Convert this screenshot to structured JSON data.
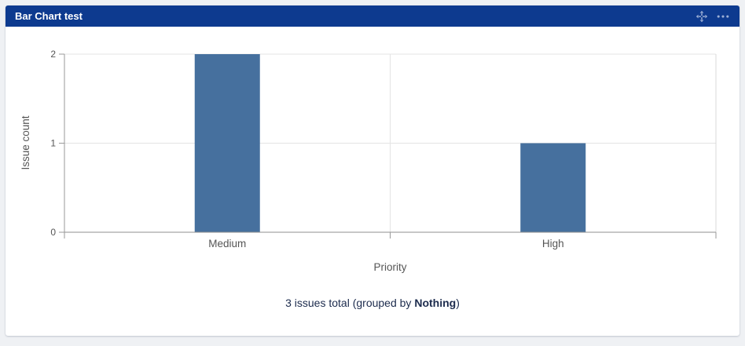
{
  "widget": {
    "title": "Bar Chart test",
    "header_color": "#0d3a8f",
    "icon_color": "#9db0d6",
    "drag_icon": "move-icon",
    "menu_icon": "ellipsis-icon"
  },
  "footer": {
    "prefix": "3 issues total (grouped by ",
    "bold": "Nothing",
    "suffix": ")"
  },
  "chart_data": {
    "type": "bar",
    "categories": [
      "Medium",
      "High"
    ],
    "values": [
      2,
      1
    ],
    "title": "",
    "xlabel": "Priority",
    "ylabel": "Issue count",
    "ylim": [
      0,
      2
    ],
    "yticks": [
      0,
      1,
      2
    ],
    "bar_color": "#46709e",
    "grid": true,
    "legend": false,
    "colors": {
      "gridline": "#e4e4e4",
      "axis": "#999999",
      "bottom_axis": "#8f8f8f",
      "plot_border": "#d9d9d9",
      "tick_label": "#555555",
      "axis_title": "#555555"
    }
  }
}
